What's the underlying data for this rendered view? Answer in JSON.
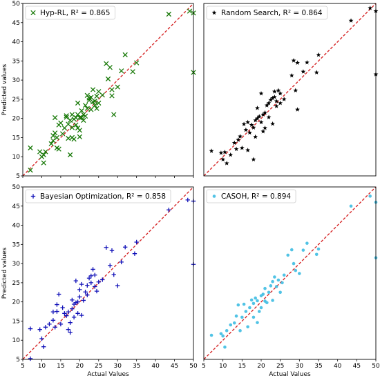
{
  "chart_data": [
    {
      "type": "scatter",
      "legend": "Hyp-RL, R² = 0.865",
      "marker": "x",
      "color": "#1a7a0a",
      "xlabel": "",
      "ylabel": "Predicted values",
      "xlim": [
        5,
        50
      ],
      "ylim": [
        5,
        50
      ],
      "xticks": [
        "5",
        "10",
        "15",
        "20",
        "25",
        "30",
        "35",
        "40",
        "45",
        "50"
      ],
      "yticks": [
        "5",
        "10",
        "15",
        "20",
        "25",
        "30",
        "35",
        "40",
        "45",
        "50"
      ],
      "show_xtick_labels": false,
      "reference_line": [
        [
          5,
          5
        ],
        [
          50,
          50
        ]
      ],
      "points": [
        [
          7,
          6.5
        ],
        [
          7,
          12.3
        ],
        [
          9.5,
          11.3
        ],
        [
          10,
          10
        ],
        [
          10.5,
          8.4
        ],
        [
          10.5,
          10.5
        ],
        [
          11,
          11.3
        ],
        [
          12.5,
          13.4
        ],
        [
          13,
          14.2
        ],
        [
          13,
          15.5
        ],
        [
          13.5,
          16.2
        ],
        [
          13.5,
          20.2
        ],
        [
          14,
          15
        ],
        [
          14,
          12.3
        ],
        [
          14.5,
          18.3
        ],
        [
          14.5,
          12
        ],
        [
          15,
          18.8
        ],
        [
          15.5,
          16
        ],
        [
          16,
          17.5
        ],
        [
          16.5,
          20.3
        ],
        [
          16.5,
          20.7
        ],
        [
          17,
          18.5
        ],
        [
          17,
          14.8
        ],
        [
          17.5,
          10.5
        ],
        [
          17.5,
          19.5
        ],
        [
          18,
          15
        ],
        [
          18,
          17.6
        ],
        [
          18,
          21
        ],
        [
          18.5,
          19.8
        ],
        [
          18.5,
          14.6
        ],
        [
          19,
          18.3
        ],
        [
          19,
          20.2
        ],
        [
          19.5,
          24
        ],
        [
          19.5,
          21
        ],
        [
          19.5,
          17.5
        ],
        [
          20,
          20.2
        ],
        [
          20,
          15.2
        ],
        [
          20,
          16.9
        ],
        [
          20.5,
          22
        ],
        [
          20.5,
          20.2
        ],
        [
          21,
          21
        ],
        [
          21,
          19.5
        ],
        [
          21.5,
          20.6
        ],
        [
          21.5,
          23.4
        ],
        [
          22,
          22.6
        ],
        [
          22,
          26
        ],
        [
          22.5,
          25.3
        ],
        [
          22.5,
          24.7
        ],
        [
          23,
          22.3
        ],
        [
          23,
          25.5
        ],
        [
          23.5,
          24.3
        ],
        [
          23.5,
          27.5
        ],
        [
          24,
          23.4
        ],
        [
          24,
          24.5
        ],
        [
          24.5,
          25.8
        ],
        [
          24.5,
          22.6
        ],
        [
          25,
          27
        ],
        [
          25,
          24
        ],
        [
          26,
          26.1
        ],
        [
          27,
          34.3
        ],
        [
          27.5,
          30.3
        ],
        [
          28,
          33.3
        ],
        [
          28.5,
          27.5
        ],
        [
          28.5,
          25.9
        ],
        [
          29,
          21
        ],
        [
          30,
          28.2
        ],
        [
          31,
          32.4
        ],
        [
          32,
          36.6
        ],
        [
          34,
          32.2
        ],
        [
          35,
          34.5
        ],
        [
          43.5,
          47.2
        ],
        [
          49,
          48
        ],
        [
          50,
          47.5
        ],
        [
          50,
          32
        ]
      ]
    },
    {
      "type": "scatter",
      "legend": "Random Search, R² = 0.864",
      "marker": "star",
      "color": "#000000",
      "xlabel": "",
      "ylabel": "",
      "xlim": [
        5,
        50
      ],
      "ylim": [
        5,
        50
      ],
      "xticks": [],
      "yticks": [],
      "reference_line": [
        [
          5,
          5
        ],
        [
          50,
          50
        ]
      ],
      "points": [
        [
          7,
          11.5
        ],
        [
          9.5,
          11
        ],
        [
          10,
          9.3
        ],
        [
          10.5,
          11.2
        ],
        [
          11,
          8.3
        ],
        [
          12,
          10.5
        ],
        [
          13,
          13.6
        ],
        [
          13.5,
          12
        ],
        [
          14,
          14.4
        ],
        [
          14.5,
          15.3
        ],
        [
          15,
          12.3
        ],
        [
          15.5,
          18.5
        ],
        [
          16,
          17
        ],
        [
          16.5,
          11.7
        ],
        [
          16.5,
          19
        ],
        [
          17,
          16.3
        ],
        [
          17.5,
          18.3
        ],
        [
          18,
          9.3
        ],
        [
          18,
          17.6
        ],
        [
          18.5,
          15.2
        ],
        [
          18.5,
          19.5
        ],
        [
          19,
          20
        ],
        [
          19,
          22.7
        ],
        [
          19.5,
          20.5
        ],
        [
          20,
          19
        ],
        [
          20,
          26.5
        ],
        [
          20.5,
          21
        ],
        [
          20.5,
          16.6
        ],
        [
          21,
          17.5
        ],
        [
          21,
          21.5
        ],
        [
          21.5,
          23.4
        ],
        [
          22,
          24
        ],
        [
          22,
          20.3
        ],
        [
          22.5,
          24.8
        ],
        [
          23,
          18.6
        ],
        [
          23,
          25.3
        ],
        [
          23.5,
          27
        ],
        [
          23.5,
          25.6
        ],
        [
          24,
          23.2
        ],
        [
          24,
          24.5
        ],
        [
          24.5,
          27.3
        ],
        [
          25,
          26.5
        ],
        [
          25,
          24
        ],
        [
          26,
          25
        ],
        [
          28,
          31.2
        ],
        [
          28.5,
          35.1
        ],
        [
          29,
          27.3
        ],
        [
          29.5,
          34.5
        ],
        [
          29.5,
          22.3
        ],
        [
          31,
          32.2
        ],
        [
          32,
          34.6
        ],
        [
          35,
          36.6
        ],
        [
          34.5,
          32
        ],
        [
          43.5,
          45.5
        ],
        [
          48.5,
          48.8
        ],
        [
          50,
          48
        ],
        [
          50,
          31.5
        ]
      ]
    },
    {
      "type": "scatter",
      "legend": "Bayesian Optimization, R² = 0.858",
      "marker": "plus",
      "color": "#1010b8",
      "xlabel": "Actual Values",
      "ylabel": "Predicted values",
      "xlim": [
        5,
        50
      ],
      "ylim": [
        5,
        50
      ],
      "xticks": [
        "5",
        "10",
        "15",
        "20",
        "25",
        "30",
        "35",
        "40",
        "45",
        "50"
      ],
      "yticks": [
        "5",
        "10",
        "15",
        "20",
        "25",
        "30",
        "35",
        "40",
        "45",
        "50"
      ],
      "reference_line": [
        [
          5,
          5
        ],
        [
          50,
          50
        ]
      ],
      "points": [
        [
          7,
          5.2
        ],
        [
          7,
          13
        ],
        [
          9.5,
          12.8
        ],
        [
          10,
          10.4
        ],
        [
          10.5,
          8.3
        ],
        [
          11,
          13.4
        ],
        [
          12,
          14.2
        ],
        [
          13,
          15.2
        ],
        [
          13,
          17.4
        ],
        [
          13.5,
          13.4
        ],
        [
          14,
          17.5
        ],
        [
          14,
          19.3
        ],
        [
          14.5,
          22
        ],
        [
          15,
          14.2
        ],
        [
          15.5,
          18.5
        ],
        [
          16,
          17
        ],
        [
          16.5,
          16.4
        ],
        [
          17,
          12.8
        ],
        [
          17,
          17.4
        ],
        [
          17.5,
          14.6
        ],
        [
          17.5,
          12
        ],
        [
          18,
          18.2
        ],
        [
          18,
          20.5
        ],
        [
          18.5,
          16
        ],
        [
          18.5,
          19.4
        ],
        [
          19,
          19.8
        ],
        [
          19,
          25.5
        ],
        [
          19.5,
          17
        ],
        [
          19.5,
          20
        ],
        [
          20,
          21.3
        ],
        [
          20,
          23.2
        ],
        [
          20.5,
          24.6
        ],
        [
          20.5,
          16.5
        ],
        [
          21,
          20.4
        ],
        [
          21.5,
          22.6
        ],
        [
          22,
          21.8
        ],
        [
          22,
          24.3
        ],
        [
          22.5,
          26.2
        ],
        [
          23,
          25
        ],
        [
          23,
          26.8
        ],
        [
          23.5,
          28.5
        ],
        [
          24,
          24
        ],
        [
          24,
          27
        ],
        [
          24.5,
          22.8
        ],
        [
          25,
          25.2
        ],
        [
          26,
          25.8
        ],
        [
          27,
          34.2
        ],
        [
          28,
          29.5
        ],
        [
          28.5,
          33.4
        ],
        [
          29,
          27.1
        ],
        [
          30,
          24.2
        ],
        [
          31,
          30.4
        ],
        [
          32,
          34.3
        ],
        [
          34.5,
          32.6
        ],
        [
          35,
          35.6
        ],
        [
          43.5,
          44
        ],
        [
          48.5,
          46.6
        ],
        [
          50,
          46.3
        ],
        [
          50,
          29.8
        ]
      ]
    },
    {
      "type": "scatter",
      "legend": "CASOH, R² = 0.894",
      "marker": "circle",
      "color": "#33b8e0",
      "xlabel": "Actual Values",
      "ylabel": "",
      "xlim": [
        5,
        50
      ],
      "ylim": [
        5,
        50
      ],
      "xticks": [
        "5",
        "10",
        "15",
        "20",
        "25",
        "30",
        "35",
        "40",
        "45",
        "50"
      ],
      "yticks": [],
      "reference_line": [
        [
          5,
          5
        ],
        [
          50,
          50
        ]
      ],
      "points": [
        [
          7,
          11.3
        ],
        [
          9.5,
          11.7
        ],
        [
          10,
          11.1
        ],
        [
          10.5,
          8.2
        ],
        [
          11,
          12.5
        ],
        [
          12,
          14
        ],
        [
          13,
          14.5
        ],
        [
          13.5,
          16.3
        ],
        [
          14,
          19.2
        ],
        [
          14.5,
          12.5
        ],
        [
          15,
          16
        ],
        [
          15.5,
          19.4
        ],
        [
          16,
          17.5
        ],
        [
          16.5,
          13.5
        ],
        [
          17,
          18.5
        ],
        [
          17.5,
          20.5
        ],
        [
          18,
          16
        ],
        [
          18,
          19.6
        ],
        [
          18.5,
          21
        ],
        [
          19,
          14.6
        ],
        [
          19,
          20.3
        ],
        [
          19.5,
          17.5
        ],
        [
          20,
          21.6
        ],
        [
          20,
          18.5
        ],
        [
          20.5,
          22
        ],
        [
          21,
          20.2
        ],
        [
          21,
          23.5
        ],
        [
          21.5,
          19.8
        ],
        [
          22,
          22.5
        ],
        [
          22.5,
          24.2
        ],
        [
          23,
          20.4
        ],
        [
          23,
          25.3
        ],
        [
          23.5,
          26.5
        ],
        [
          24,
          24
        ],
        [
          24.5,
          25.7
        ],
        [
          25,
          22.5
        ],
        [
          25.5,
          25
        ],
        [
          26,
          27
        ],
        [
          27,
          32.2
        ],
        [
          28,
          33.6
        ],
        [
          28.5,
          30
        ],
        [
          29,
          28.2
        ],
        [
          30,
          27.4
        ],
        [
          31,
          33.5
        ],
        [
          32,
          35.3
        ],
        [
          34.5,
          32.4
        ],
        [
          35,
          33.8
        ],
        [
          43.5,
          45
        ],
        [
          48.5,
          47.6
        ],
        [
          50,
          46
        ],
        [
          50,
          31.5
        ]
      ]
    }
  ]
}
